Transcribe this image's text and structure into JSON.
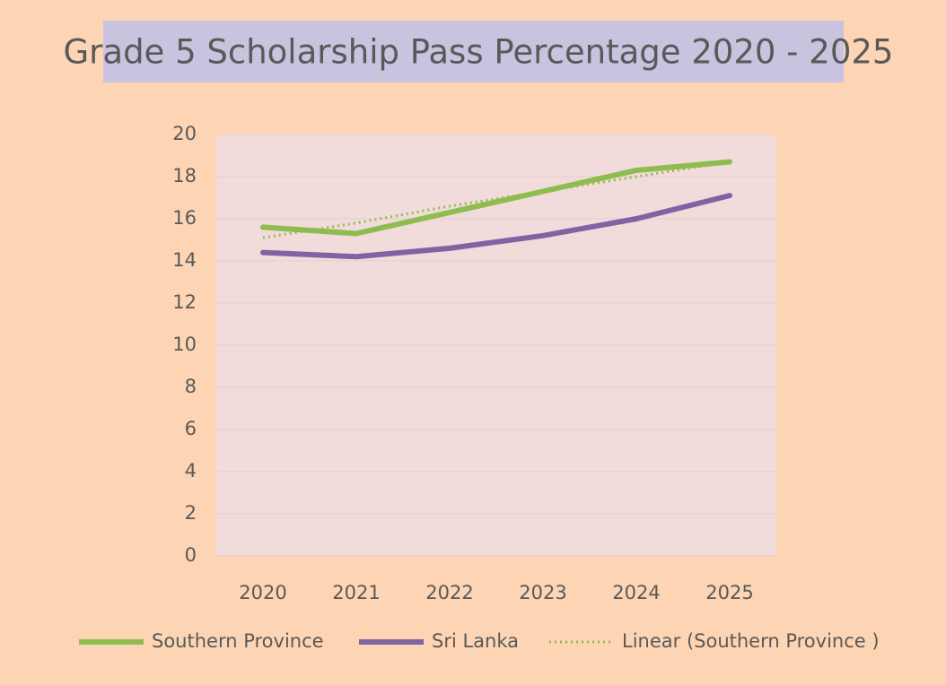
{
  "chart_data": {
    "type": "line",
    "title": "Grade 5 Scholarship Pass Percentage 2020 - 2025",
    "categories": [
      "2020",
      "2021",
      "2022",
      "2023",
      "2024",
      "2025"
    ],
    "series": [
      {
        "name": "Southern Province",
        "color": "#8fbc4f",
        "style": "solid",
        "values": [
          15.6,
          15.3,
          16.3,
          17.3,
          18.3,
          18.7
        ]
      },
      {
        "name": "Sri Lanka",
        "color": "#8064a2",
        "style": "solid",
        "values": [
          14.4,
          14.2,
          14.6,
          15.2,
          16.0,
          17.1
        ]
      },
      {
        "name": "Linear (Southern Province )",
        "color": "#8fbc4f",
        "style": "dotted",
        "values": [
          15.1,
          15.8,
          16.6,
          17.3,
          18.0,
          18.7
        ]
      }
    ],
    "ylim": [
      0,
      20
    ],
    "yticks": [
      0,
      2,
      4,
      6,
      8,
      10,
      12,
      14,
      16,
      18,
      20
    ],
    "grid": true,
    "legend": "bottom"
  }
}
